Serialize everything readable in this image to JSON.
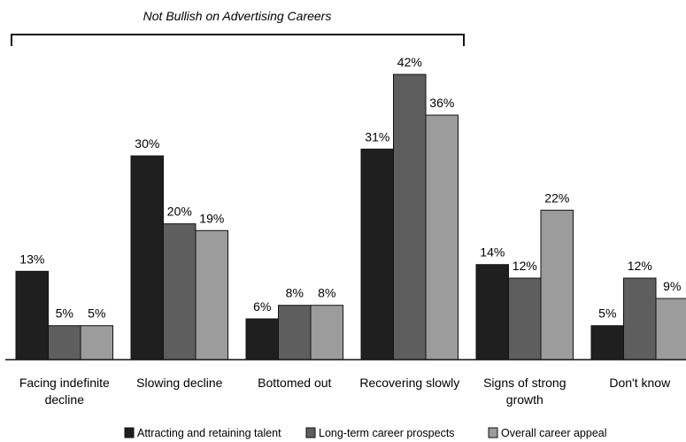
{
  "chart_data": {
    "type": "bar",
    "title": "",
    "annotation": "Not Bullish on  Advertising Careers",
    "categories": [
      [
        "Facing indefinite",
        "decline"
      ],
      [
        "Slowing decline"
      ],
      [
        "Bottomed out"
      ],
      [
        "Recovering slowly"
      ],
      [
        "Signs of strong",
        "growth"
      ],
      [
        "Don't know"
      ]
    ],
    "series": [
      {
        "name": "Attracting and retaining talent",
        "values": [
          13,
          30,
          6,
          31,
          14,
          5
        ],
        "labels": [
          "13%",
          "30%",
          "6%",
          "31%",
          "14%",
          "5%"
        ]
      },
      {
        "name": "Long-term career prospects",
        "values": [
          5,
          20,
          8,
          42,
          12,
          12
        ],
        "labels": [
          "5%",
          "20%",
          "8%",
          "42%",
          "12%",
          "12%"
        ]
      },
      {
        "name": "Overall career appeal",
        "values": [
          5,
          19,
          8,
          36,
          22,
          9
        ],
        "labels": [
          "5%",
          "19%",
          "8%",
          "36%",
          "22%",
          "9%"
        ]
      }
    ],
    "colors": [
      "#1f1f1f",
      "#5e5e5e",
      "#9c9c9c"
    ],
    "ylim": [
      0,
      42
    ],
    "legend_position": "bottom",
    "grid": false
  }
}
